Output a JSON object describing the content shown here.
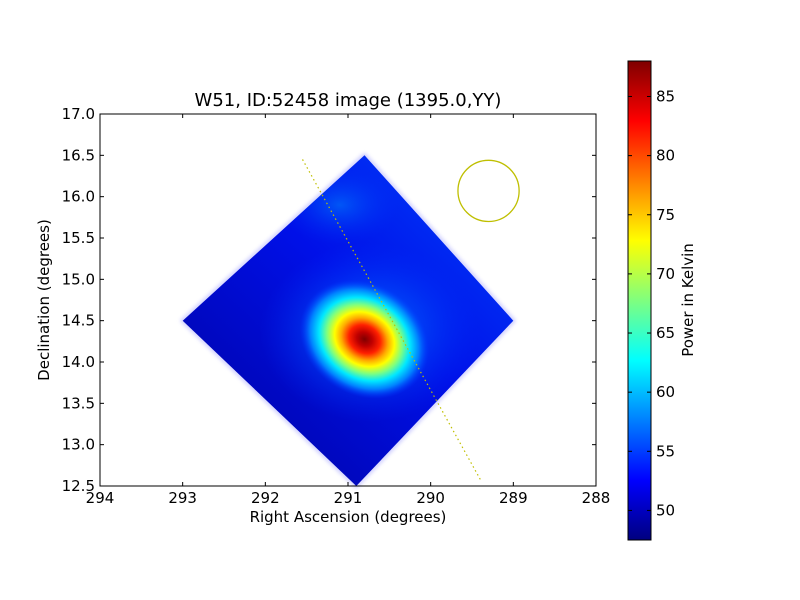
{
  "chart_data": {
    "type": "heatmap",
    "title": "W51, ID:52458 image (1395.0,YY)",
    "xlabel": "Right Ascension (degrees)",
    "ylabel": "Declination (degrees)",
    "xlim": [
      294,
      288
    ],
    "ylim": [
      12.5,
      17.0
    ],
    "x_ticks": [
      "294",
      "293",
      "292",
      "291",
      "290",
      "289",
      "288"
    ],
    "y_ticks": [
      "12.5",
      "13.0",
      "13.5",
      "14.0",
      "14.5",
      "15.0",
      "15.5",
      "16.0",
      "16.5",
      "17.0"
    ],
    "x_tick_values": [
      294,
      293,
      292,
      291,
      290,
      289,
      288
    ],
    "y_tick_values": [
      12.5,
      13.0,
      13.5,
      14.0,
      14.5,
      15.0,
      15.5,
      16.0,
      16.5,
      17.0
    ],
    "grid": false,
    "colormap": "jet",
    "map_region": {
      "shape": "diamond",
      "center": [
        290.97,
        14.53
      ],
      "vertices": [
        [
          293.0,
          14.5
        ],
        [
          290.8,
          16.5
        ],
        [
          289.0,
          14.5
        ],
        [
          290.9,
          12.5
        ]
      ]
    },
    "peak": {
      "ra": 290.8,
      "dec": 14.3,
      "value": 88
    },
    "background_value": 48,
    "beam": {
      "ra": 289.3,
      "dec": 16.07,
      "radius_deg": 0.37,
      "color": "#bfbf00"
    },
    "dotted_line": {
      "from": [
        291.55,
        16.45
      ],
      "to": [
        289.4,
        12.58
      ],
      "color": "#bfbf00"
    },
    "colorbar": {
      "label": "Power in Kelvin",
      "range": [
        47.5,
        88
      ],
      "ticks": [
        "50",
        "55",
        "60",
        "65",
        "70",
        "75",
        "80",
        "85"
      ],
      "tick_values": [
        50,
        55,
        60,
        65,
        70,
        75,
        80,
        85
      ]
    }
  }
}
